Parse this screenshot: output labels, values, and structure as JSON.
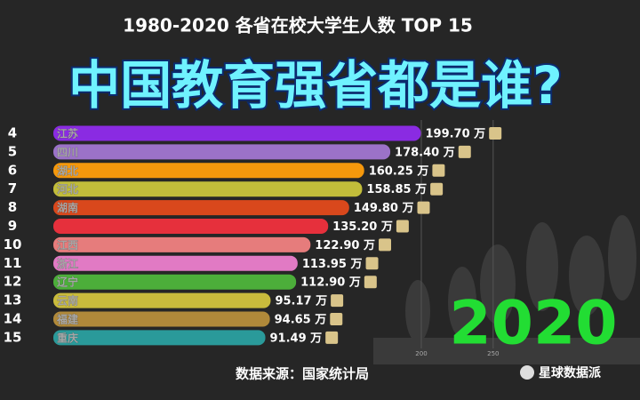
{
  "chart_data": {
    "type": "bar",
    "orientation": "horizontal",
    "title": "1980-2020 各省在校大学生人数 TOP 15",
    "headline": "中国教育强省都是谁?",
    "year": "2020",
    "source": "数据来源：国家统计局",
    "watermark": "星球数据派",
    "ranks": [
      4,
      5,
      6,
      7,
      8,
      9,
      10,
      11,
      12,
      13,
      14,
      15
    ],
    "categories": [
      "江苏",
      "四川",
      "湖北",
      "河北",
      "湖南",
      null,
      "江西",
      "浙江",
      "辽宁",
      "云南",
      "福建",
      "重庆"
    ],
    "values": [
      199.7,
      178.4,
      160.25,
      158.85,
      149.8,
      135.2,
      122.9,
      113.95,
      112.9,
      95.17,
      94.65,
      91.49
    ],
    "value_labels": [
      "199.70 万",
      "178.40 万",
      "160.25 万",
      "158.85 万",
      "149.80 万",
      "135.20 万",
      "122.90 万",
      "113.95 万",
      "112.90 万",
      "95.17 万",
      "94.65 万",
      "91.49 万"
    ],
    "colors": [
      "#8a2be2",
      "#9b72c8",
      "#f5980c",
      "#c2bd3a",
      "#d9481c",
      "#e6303c",
      "#e67c7c",
      "#e17ac4",
      "#4cae3a",
      "#c9bb3c",
      "#b0893a",
      "#2a9a9a"
    ],
    "xlim": [
      -56,
      260
    ],
    "xticks": [
      200,
      250
    ],
    "grid": true
  }
}
